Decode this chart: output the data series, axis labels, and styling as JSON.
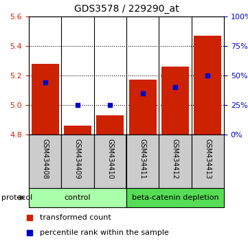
{
  "title": "GDS3578 / 229290_at",
  "samples": [
    "GSM434408",
    "GSM434409",
    "GSM434410",
    "GSM434411",
    "GSM434412",
    "GSM434413"
  ],
  "transformed_counts": [
    5.28,
    4.86,
    4.93,
    5.17,
    5.26,
    5.47
  ],
  "percentile_ranks": [
    44,
    25,
    25,
    35,
    40,
    50
  ],
  "bar_bottom": 4.8,
  "ylim_left": [
    4.8,
    5.6
  ],
  "ylim_right": [
    0,
    100
  ],
  "yticks_left": [
    4.8,
    5.0,
    5.2,
    5.4,
    5.6
  ],
  "yticks_right": [
    0,
    25,
    50,
    75,
    100
  ],
  "bar_color": "#cc2200",
  "blue_color": "#0000cc",
  "control_color": "#aaffaa",
  "depletion_color": "#55dd55",
  "label_color_left": "#cc2200",
  "label_color_right": "#0000cc",
  "protocol_label": "protocol",
  "control_label": "control",
  "depletion_label": "beta-catenin depletion",
  "legend_red": "transformed count",
  "legend_blue": "percentile rank within the sample",
  "sample_box_color": "#cccccc",
  "n_control": 3,
  "n_depletion": 3
}
